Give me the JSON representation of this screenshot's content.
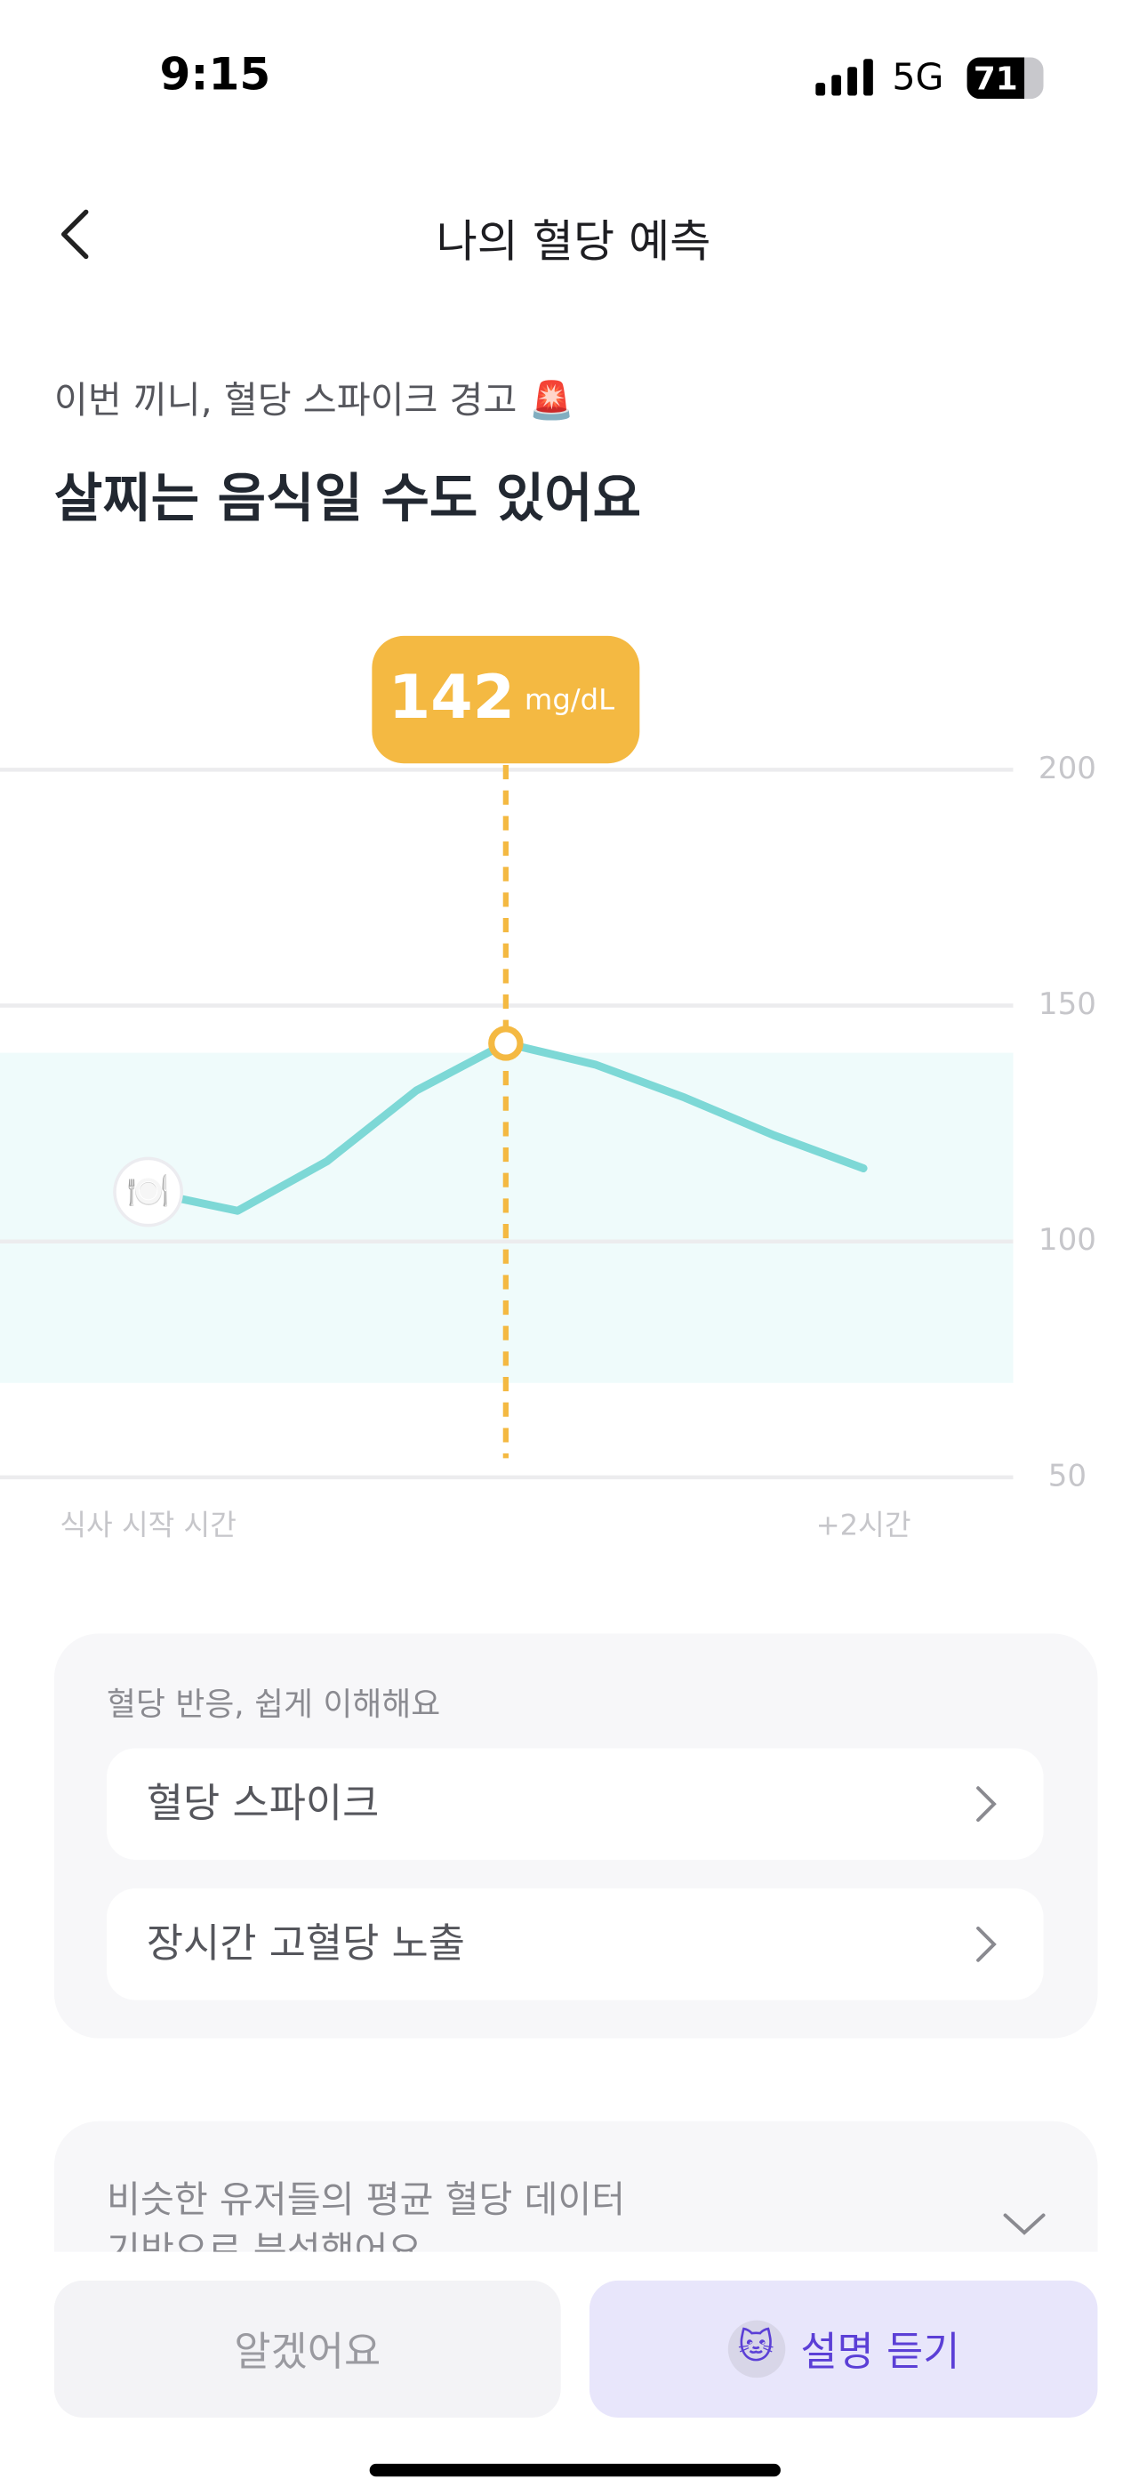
{
  "status_bar": {
    "time": "9:15",
    "network": "5G",
    "battery": "71"
  },
  "header": {
    "title": "나의 혈당 예측"
  },
  "headline": {
    "subtitle": "이번 끼니, 혈당 스파이크 경고 🚨",
    "title": "살찌는 음식일 수도 있어요"
  },
  "chart_data": {
    "type": "line",
    "categories": [
      "식사 시작 시간",
      null,
      null,
      null,
      null,
      null,
      null,
      null,
      "+2시간"
    ],
    "values": [
      110.5,
      106.5,
      117,
      132,
      142,
      137.5,
      130.5,
      122.5,
      115.5
    ],
    "color": "#7dd8d6",
    "ylim": [
      50,
      200
    ],
    "yticks": [
      50,
      100,
      150,
      200
    ],
    "grid": true,
    "target_range": [
      70,
      140
    ],
    "range_color": "#effbfb",
    "highlight": {
      "value": 142,
      "unit": "mg/dL",
      "color": "#f4b942"
    }
  },
  "reaction_card": {
    "title": "혈당 반응, 쉽게 이해해요",
    "items": [
      "혈당 스파이크",
      "장시간 고혈당 노출"
    ]
  },
  "info_card": {
    "lines": [
      "비슷한 유저들의 평균 혈당 데이터",
      "기반으로 분석했어요"
    ]
  },
  "buttons": {
    "dismiss": "알겠어요",
    "explain": "설명 듣기"
  }
}
